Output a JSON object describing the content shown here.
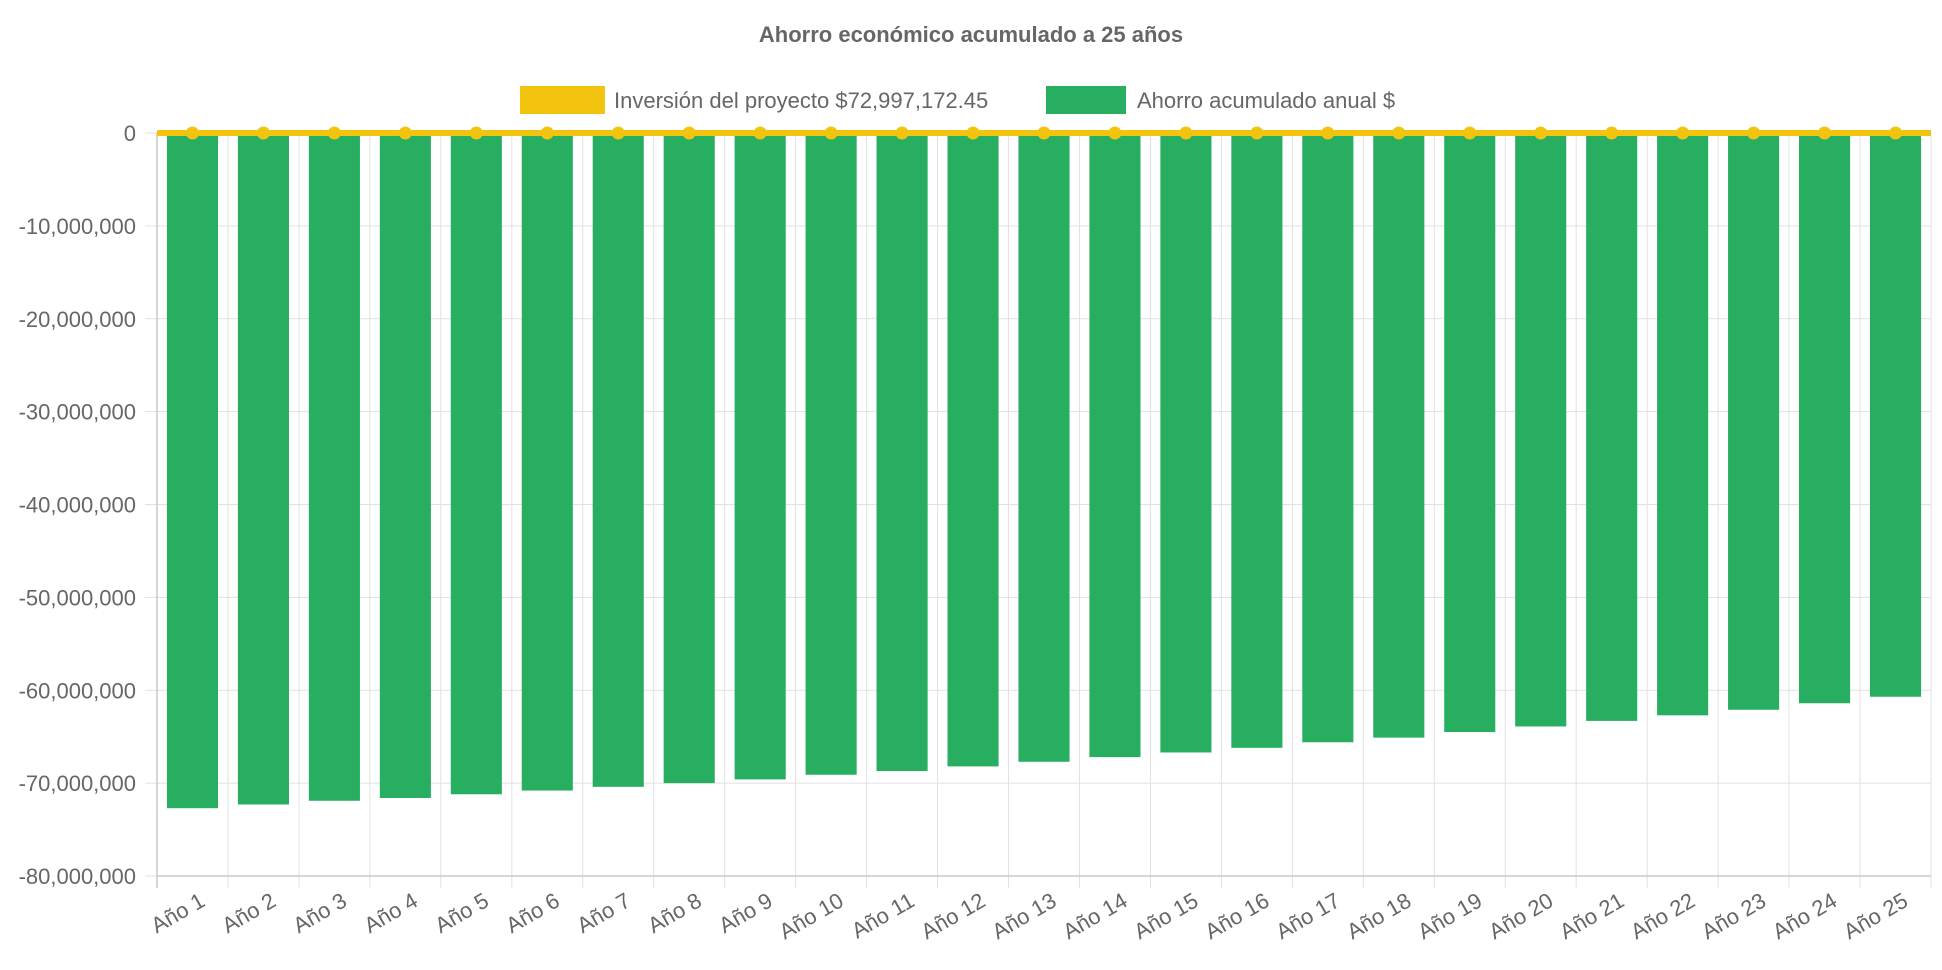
{
  "chart_data": {
    "type": "bar",
    "title": "Ahorro económico acumulado a 25 años",
    "categories": [
      "Año 1",
      "Año 2",
      "Año 3",
      "Año 4",
      "Año 5",
      "Año 6",
      "Año 7",
      "Año 8",
      "Año 9",
      "Año 10",
      "Año 11",
      "Año 12",
      "Año 13",
      "Año 14",
      "Año 15",
      "Año 16",
      "Año 17",
      "Año 18",
      "Año 19",
      "Año 20",
      "Año 21",
      "Año 22",
      "Año 23",
      "Año 24",
      "Año 25"
    ],
    "series": [
      {
        "name": "Inversión del proyecto $72,997,172.45",
        "type": "line",
        "color": "#f2c40f",
        "values": [
          0,
          0,
          0,
          0,
          0,
          0,
          0,
          0,
          0,
          0,
          0,
          0,
          0,
          0,
          0,
          0,
          0,
          0,
          0,
          0,
          0,
          0,
          0,
          0,
          0
        ]
      },
      {
        "name": "Ahorro acumulado anual $",
        "type": "bar",
        "color": "#27ae60",
        "values": [
          -72700000,
          -72300000,
          -71900000,
          -71600000,
          -71200000,
          -70800000,
          -70400000,
          -70000000,
          -69600000,
          -69100000,
          -68700000,
          -68200000,
          -67700000,
          -67200000,
          -66700000,
          -66200000,
          -65600000,
          -65100000,
          -64500000,
          -63900000,
          -63300000,
          -62700000,
          -62100000,
          -61400000,
          -60700000
        ]
      }
    ],
    "ylim": [
      -80000000,
      0
    ],
    "yticks": [
      "0",
      "-10,000,000",
      "-20,000,000",
      "-30,000,000",
      "-40,000,000",
      "-50,000,000",
      "-60,000,000",
      "-70,000,000",
      "-80,000,000"
    ],
    "ytick_values": [
      0,
      -10000000,
      -20000000,
      -30000000,
      -40000000,
      -50000000,
      -60000000,
      -70000000,
      -80000000
    ],
    "xlabel": "",
    "ylabel": "",
    "grid": true,
    "legend_position": "top"
  }
}
